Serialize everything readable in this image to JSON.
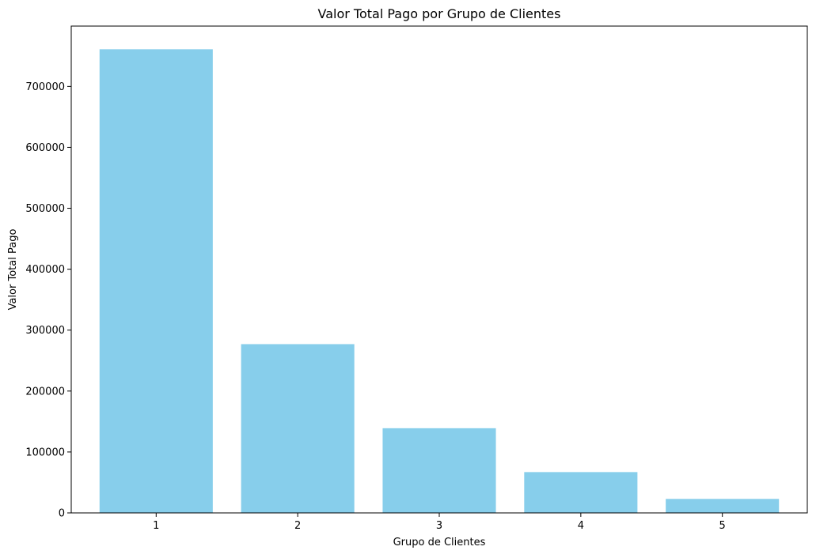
{
  "chart_data": {
    "type": "bar",
    "title": "Valor Total Pago por Grupo de Clientes",
    "xlabel": "Grupo de Clientes",
    "ylabel": "Valor Total Pago",
    "categories": [
      "1",
      "2",
      "3",
      "4",
      "5"
    ],
    "values": [
      761000,
      277000,
      139000,
      67000,
      23000
    ],
    "ylim": [
      0,
      799050
    ],
    "yticks": [
      0,
      100000,
      200000,
      300000,
      400000,
      500000,
      600000,
      700000
    ],
    "ytick_labels": [
      "0",
      "100000",
      "200000",
      "300000",
      "400000",
      "500000",
      "600000",
      "700000"
    ],
    "bar_color": "#87ceeb",
    "grid": false,
    "legend": "none"
  }
}
